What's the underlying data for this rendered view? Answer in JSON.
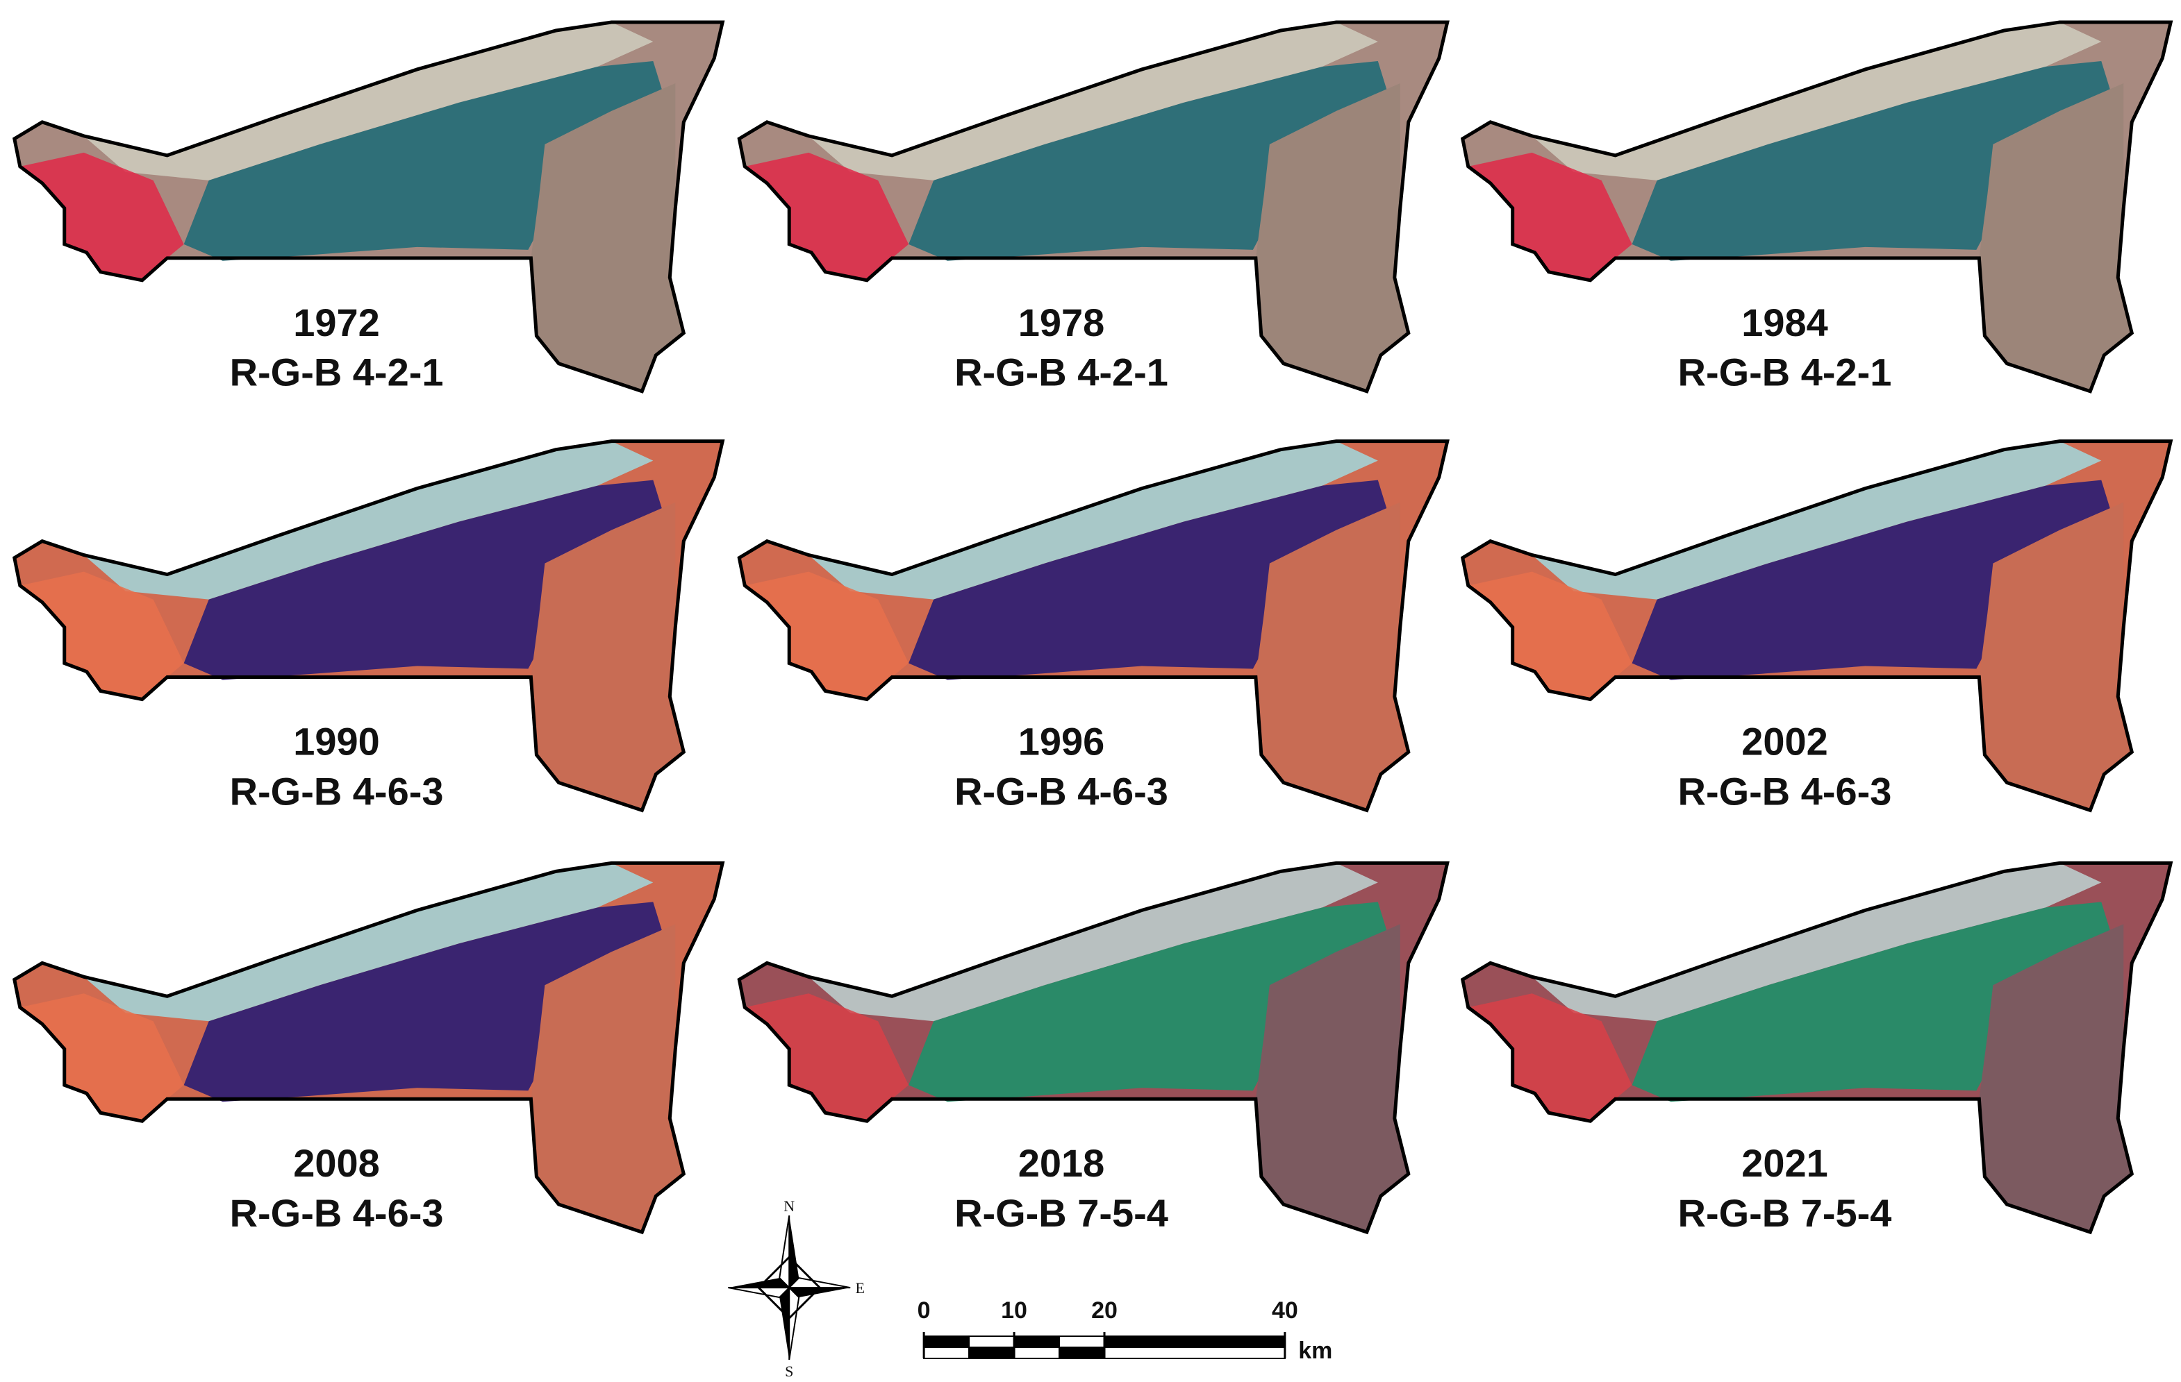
{
  "panels": [
    {
      "year": "1972",
      "bands": "R-G-B 4-2-1"
    },
    {
      "year": "1978",
      "bands": "R-G-B 4-2-1"
    },
    {
      "year": "1984",
      "bands": "R-G-B 4-2-1"
    },
    {
      "year": "1990",
      "bands": "R-G-B 4-6-3"
    },
    {
      "year": "1996",
      "bands": "R-G-B 4-6-3"
    },
    {
      "year": "2002",
      "bands": "R-G-B 4-6-3"
    },
    {
      "year": "2008",
      "bands": "R-G-B 4-6-3"
    },
    {
      "year": "2018",
      "bands": "R-G-B 7-5-4"
    },
    {
      "year": "2021",
      "bands": "R-G-B 7-5-4"
    }
  ],
  "compass": {
    "north": "N",
    "east": "E",
    "south": "S"
  },
  "scale_bar": {
    "ticks": [
      0,
      10,
      20,
      40
    ],
    "unit": "km"
  }
}
